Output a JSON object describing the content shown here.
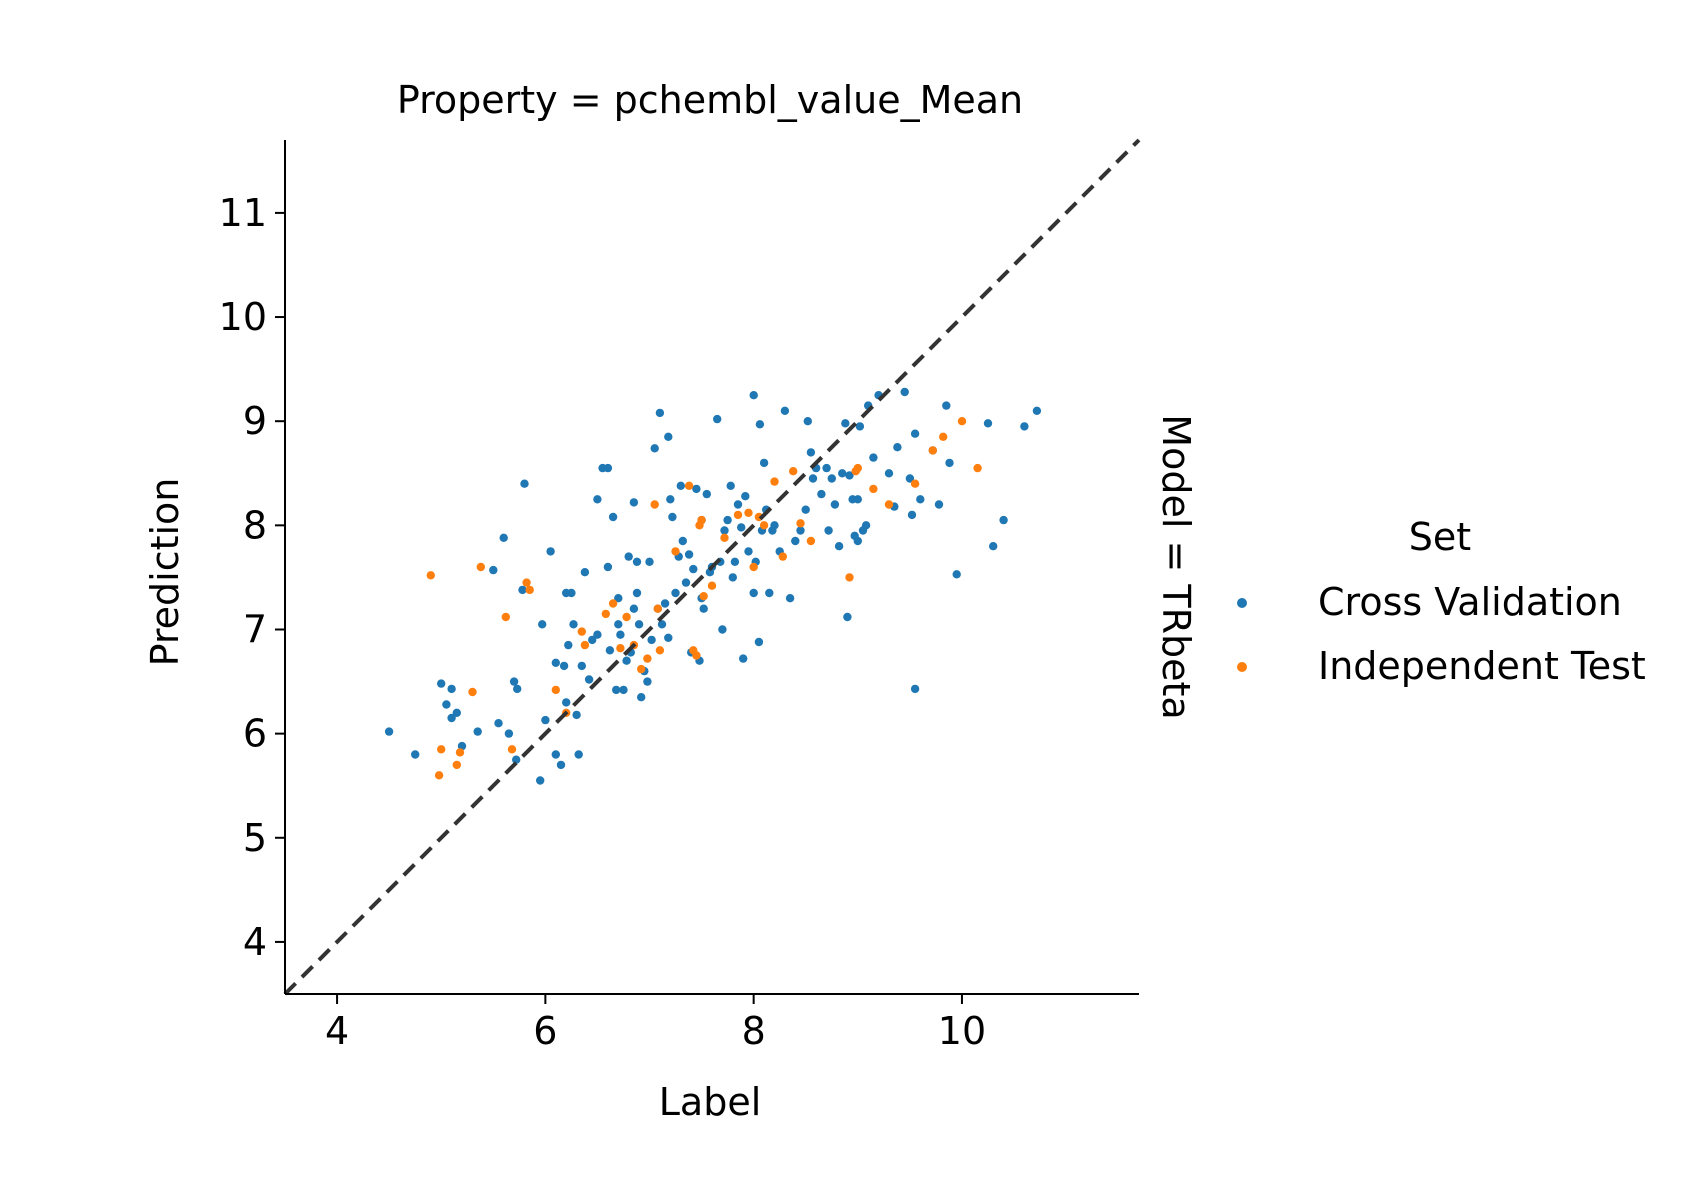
{
  "chart_data": {
    "type": "scatter",
    "title": "Property = pchembl_value_Mean",
    "facet_label": "Model = TRbeta",
    "xlabel": "Label",
    "ylabel": "Prediction",
    "xlim": [
      3.5,
      11.7
    ],
    "ylim": [
      3.5,
      11.7
    ],
    "xticks": [
      4,
      6,
      8,
      10
    ],
    "yticks": [
      4,
      5,
      6,
      7,
      8,
      9,
      10,
      11
    ],
    "grid": false,
    "identity_line": true,
    "legend": {
      "title": "Set",
      "placement": "right",
      "entries": [
        {
          "label": "Cross Validation",
          "color": "#1f77b4"
        },
        {
          "label": "Independent Test",
          "color": "#ff7f0e"
        }
      ]
    },
    "series": [
      {
        "name": "Cross Validation",
        "color": "#1f77b4",
        "points": [
          [
            4.5,
            6.02
          ],
          [
            4.75,
            5.8
          ],
          [
            5.0,
            6.48
          ],
          [
            5.05,
            6.28
          ],
          [
            5.1,
            6.43
          ],
          [
            5.1,
            6.15
          ],
          [
            5.15,
            6.2
          ],
          [
            5.2,
            5.88
          ],
          [
            5.35,
            6.02
          ],
          [
            5.5,
            7.57
          ],
          [
            5.55,
            6.1
          ],
          [
            5.6,
            7.88
          ],
          [
            5.65,
            6.0
          ],
          [
            5.7,
            6.5
          ],
          [
            5.72,
            5.75
          ],
          [
            5.73,
            6.43
          ],
          [
            5.78,
            7.38
          ],
          [
            5.8,
            8.4
          ],
          [
            5.95,
            5.55
          ],
          [
            5.97,
            7.05
          ],
          [
            6.0,
            6.13
          ],
          [
            6.05,
            7.75
          ],
          [
            6.1,
            6.68
          ],
          [
            6.1,
            5.8
          ],
          [
            6.15,
            5.7
          ],
          [
            6.18,
            6.65
          ],
          [
            6.2,
            6.3
          ],
          [
            6.2,
            7.35
          ],
          [
            6.22,
            6.85
          ],
          [
            6.25,
            7.35
          ],
          [
            6.27,
            7.05
          ],
          [
            6.3,
            6.18
          ],
          [
            6.32,
            5.8
          ],
          [
            6.35,
            6.65
          ],
          [
            6.38,
            7.55
          ],
          [
            6.42,
            6.52
          ],
          [
            6.45,
            6.9
          ],
          [
            6.5,
            6.95
          ],
          [
            6.5,
            8.25
          ],
          [
            6.55,
            8.55
          ],
          [
            6.6,
            8.55
          ],
          [
            6.6,
            7.6
          ],
          [
            6.62,
            6.8
          ],
          [
            6.65,
            8.08
          ],
          [
            6.68,
            6.42
          ],
          [
            6.7,
            7.3
          ],
          [
            6.72,
            6.95
          ],
          [
            6.75,
            6.42
          ],
          [
            6.78,
            6.7
          ],
          [
            6.8,
            7.7
          ],
          [
            6.82,
            6.78
          ],
          [
            6.85,
            7.2
          ],
          [
            6.85,
            8.22
          ],
          [
            6.88,
            7.65
          ],
          [
            6.9,
            7.05
          ],
          [
            6.92,
            6.35
          ],
          [
            6.95,
            6.6
          ],
          [
            6.98,
            6.5
          ],
          [
            7.0,
            7.65
          ],
          [
            7.02,
            6.9
          ],
          [
            7.05,
            8.74
          ],
          [
            7.08,
            7.2
          ],
          [
            7.1,
            9.08
          ],
          [
            7.12,
            7.05
          ],
          [
            7.15,
            7.25
          ],
          [
            7.18,
            8.85
          ],
          [
            7.2,
            8.25
          ],
          [
            7.22,
            8.08
          ],
          [
            7.25,
            7.35
          ],
          [
            7.28,
            7.7
          ],
          [
            7.3,
            8.38
          ],
          [
            7.32,
            7.85
          ],
          [
            7.35,
            7.45
          ],
          [
            7.38,
            7.72
          ],
          [
            7.4,
            6.78
          ],
          [
            7.42,
            7.58
          ],
          [
            7.45,
            8.35
          ],
          [
            7.48,
            6.7
          ],
          [
            7.5,
            8.05
          ],
          [
            7.52,
            7.2
          ],
          [
            7.55,
            8.3
          ],
          [
            7.58,
            7.55
          ],
          [
            7.6,
            7.6
          ],
          [
            7.65,
            9.02
          ],
          [
            7.68,
            7.65
          ],
          [
            7.7,
            7.0
          ],
          [
            7.72,
            7.95
          ],
          [
            7.75,
            8.05
          ],
          [
            7.78,
            8.38
          ],
          [
            7.8,
            7.5
          ],
          [
            7.82,
            7.65
          ],
          [
            7.85,
            8.2
          ],
          [
            7.88,
            7.98
          ],
          [
            7.9,
            6.72
          ],
          [
            7.92,
            8.28
          ],
          [
            7.95,
            7.75
          ],
          [
            8.0,
            9.25
          ],
          [
            8.0,
            7.35
          ],
          [
            8.02,
            7.65
          ],
          [
            8.05,
            6.88
          ],
          [
            8.06,
            8.97
          ],
          [
            8.08,
            7.95
          ],
          [
            8.1,
            8.6
          ],
          [
            8.12,
            8.15
          ],
          [
            8.15,
            7.35
          ],
          [
            8.18,
            7.95
          ],
          [
            8.2,
            8.0
          ],
          [
            8.25,
            7.75
          ],
          [
            8.3,
            9.1
          ],
          [
            8.35,
            7.3
          ],
          [
            8.4,
            7.85
          ],
          [
            8.45,
            7.95
          ],
          [
            8.5,
            8.15
          ],
          [
            8.52,
            9.0
          ],
          [
            8.55,
            8.7
          ],
          [
            8.57,
            8.45
          ],
          [
            8.6,
            8.55
          ],
          [
            8.65,
            8.3
          ],
          [
            8.7,
            8.55
          ],
          [
            8.72,
            7.95
          ],
          [
            8.75,
            8.45
          ],
          [
            8.78,
            8.2
          ],
          [
            8.82,
            7.8
          ],
          [
            8.85,
            8.5
          ],
          [
            8.88,
            8.98
          ],
          [
            8.9,
            7.12
          ],
          [
            8.92,
            8.48
          ],
          [
            8.95,
            8.25
          ],
          [
            8.97,
            7.9
          ],
          [
            9.0,
            7.85
          ],
          [
            9.0,
            8.25
          ],
          [
            9.02,
            8.95
          ],
          [
            9.05,
            7.95
          ],
          [
            9.08,
            8.0
          ],
          [
            9.1,
            9.15
          ],
          [
            9.15,
            8.65
          ],
          [
            9.2,
            9.25
          ],
          [
            9.3,
            8.5
          ],
          [
            9.35,
            8.18
          ],
          [
            9.38,
            8.75
          ],
          [
            9.45,
            9.28
          ],
          [
            9.5,
            8.45
          ],
          [
            9.52,
            8.1
          ],
          [
            9.55,
            6.43
          ],
          [
            9.55,
            8.88
          ],
          [
            9.6,
            8.25
          ],
          [
            9.72,
            8.72
          ],
          [
            9.78,
            8.2
          ],
          [
            9.85,
            9.15
          ],
          [
            9.88,
            8.6
          ],
          [
            9.95,
            7.53
          ],
          [
            10.25,
            8.98
          ],
          [
            10.3,
            7.8
          ],
          [
            10.4,
            8.05
          ],
          [
            10.6,
            8.95
          ],
          [
            10.72,
            9.1
          ],
          [
            6.7,
            7.05
          ],
          [
            6.88,
            7.35
          ],
          [
            7.18,
            6.92
          ],
          [
            7.5,
            7.3
          ]
        ]
      },
      {
        "name": "Independent Test",
        "color": "#ff7f0e",
        "points": [
          [
            4.9,
            7.52
          ],
          [
            4.98,
            5.6
          ],
          [
            5.0,
            5.85
          ],
          [
            5.15,
            5.7
          ],
          [
            5.18,
            5.82
          ],
          [
            5.3,
            6.4
          ],
          [
            5.38,
            7.6
          ],
          [
            5.62,
            7.12
          ],
          [
            5.68,
            5.85
          ],
          [
            5.82,
            7.45
          ],
          [
            5.85,
            7.38
          ],
          [
            6.1,
            6.42
          ],
          [
            6.2,
            6.2
          ],
          [
            6.35,
            6.98
          ],
          [
            6.38,
            6.85
          ],
          [
            6.58,
            7.15
          ],
          [
            6.65,
            7.25
          ],
          [
            6.72,
            6.82
          ],
          [
            6.78,
            7.12
          ],
          [
            6.85,
            6.85
          ],
          [
            6.92,
            6.62
          ],
          [
            6.98,
            6.72
          ],
          [
            7.05,
            8.2
          ],
          [
            7.08,
            7.2
          ],
          [
            7.1,
            6.8
          ],
          [
            7.25,
            7.75
          ],
          [
            7.38,
            8.38
          ],
          [
            7.42,
            6.8
          ],
          [
            7.48,
            8.0
          ],
          [
            7.5,
            8.05
          ],
          [
            7.52,
            7.32
          ],
          [
            7.6,
            7.42
          ],
          [
            7.72,
            7.88
          ],
          [
            7.85,
            8.1
          ],
          [
            7.95,
            8.12
          ],
          [
            8.05,
            8.08
          ],
          [
            8.1,
            8.0
          ],
          [
            8.2,
            8.42
          ],
          [
            8.28,
            7.7
          ],
          [
            8.38,
            8.52
          ],
          [
            8.45,
            8.02
          ],
          [
            8.55,
            7.85
          ],
          [
            8.92,
            7.5
          ],
          [
            8.98,
            8.52
          ],
          [
            9.0,
            8.55
          ],
          [
            9.15,
            8.35
          ],
          [
            9.3,
            8.2
          ],
          [
            9.55,
            8.4
          ],
          [
            9.72,
            8.72
          ],
          [
            9.82,
            8.85
          ],
          [
            10.0,
            9.0
          ],
          [
            10.15,
            8.55
          ],
          [
            7.45,
            6.75
          ],
          [
            8.0,
            7.6
          ]
        ]
      }
    ]
  }
}
